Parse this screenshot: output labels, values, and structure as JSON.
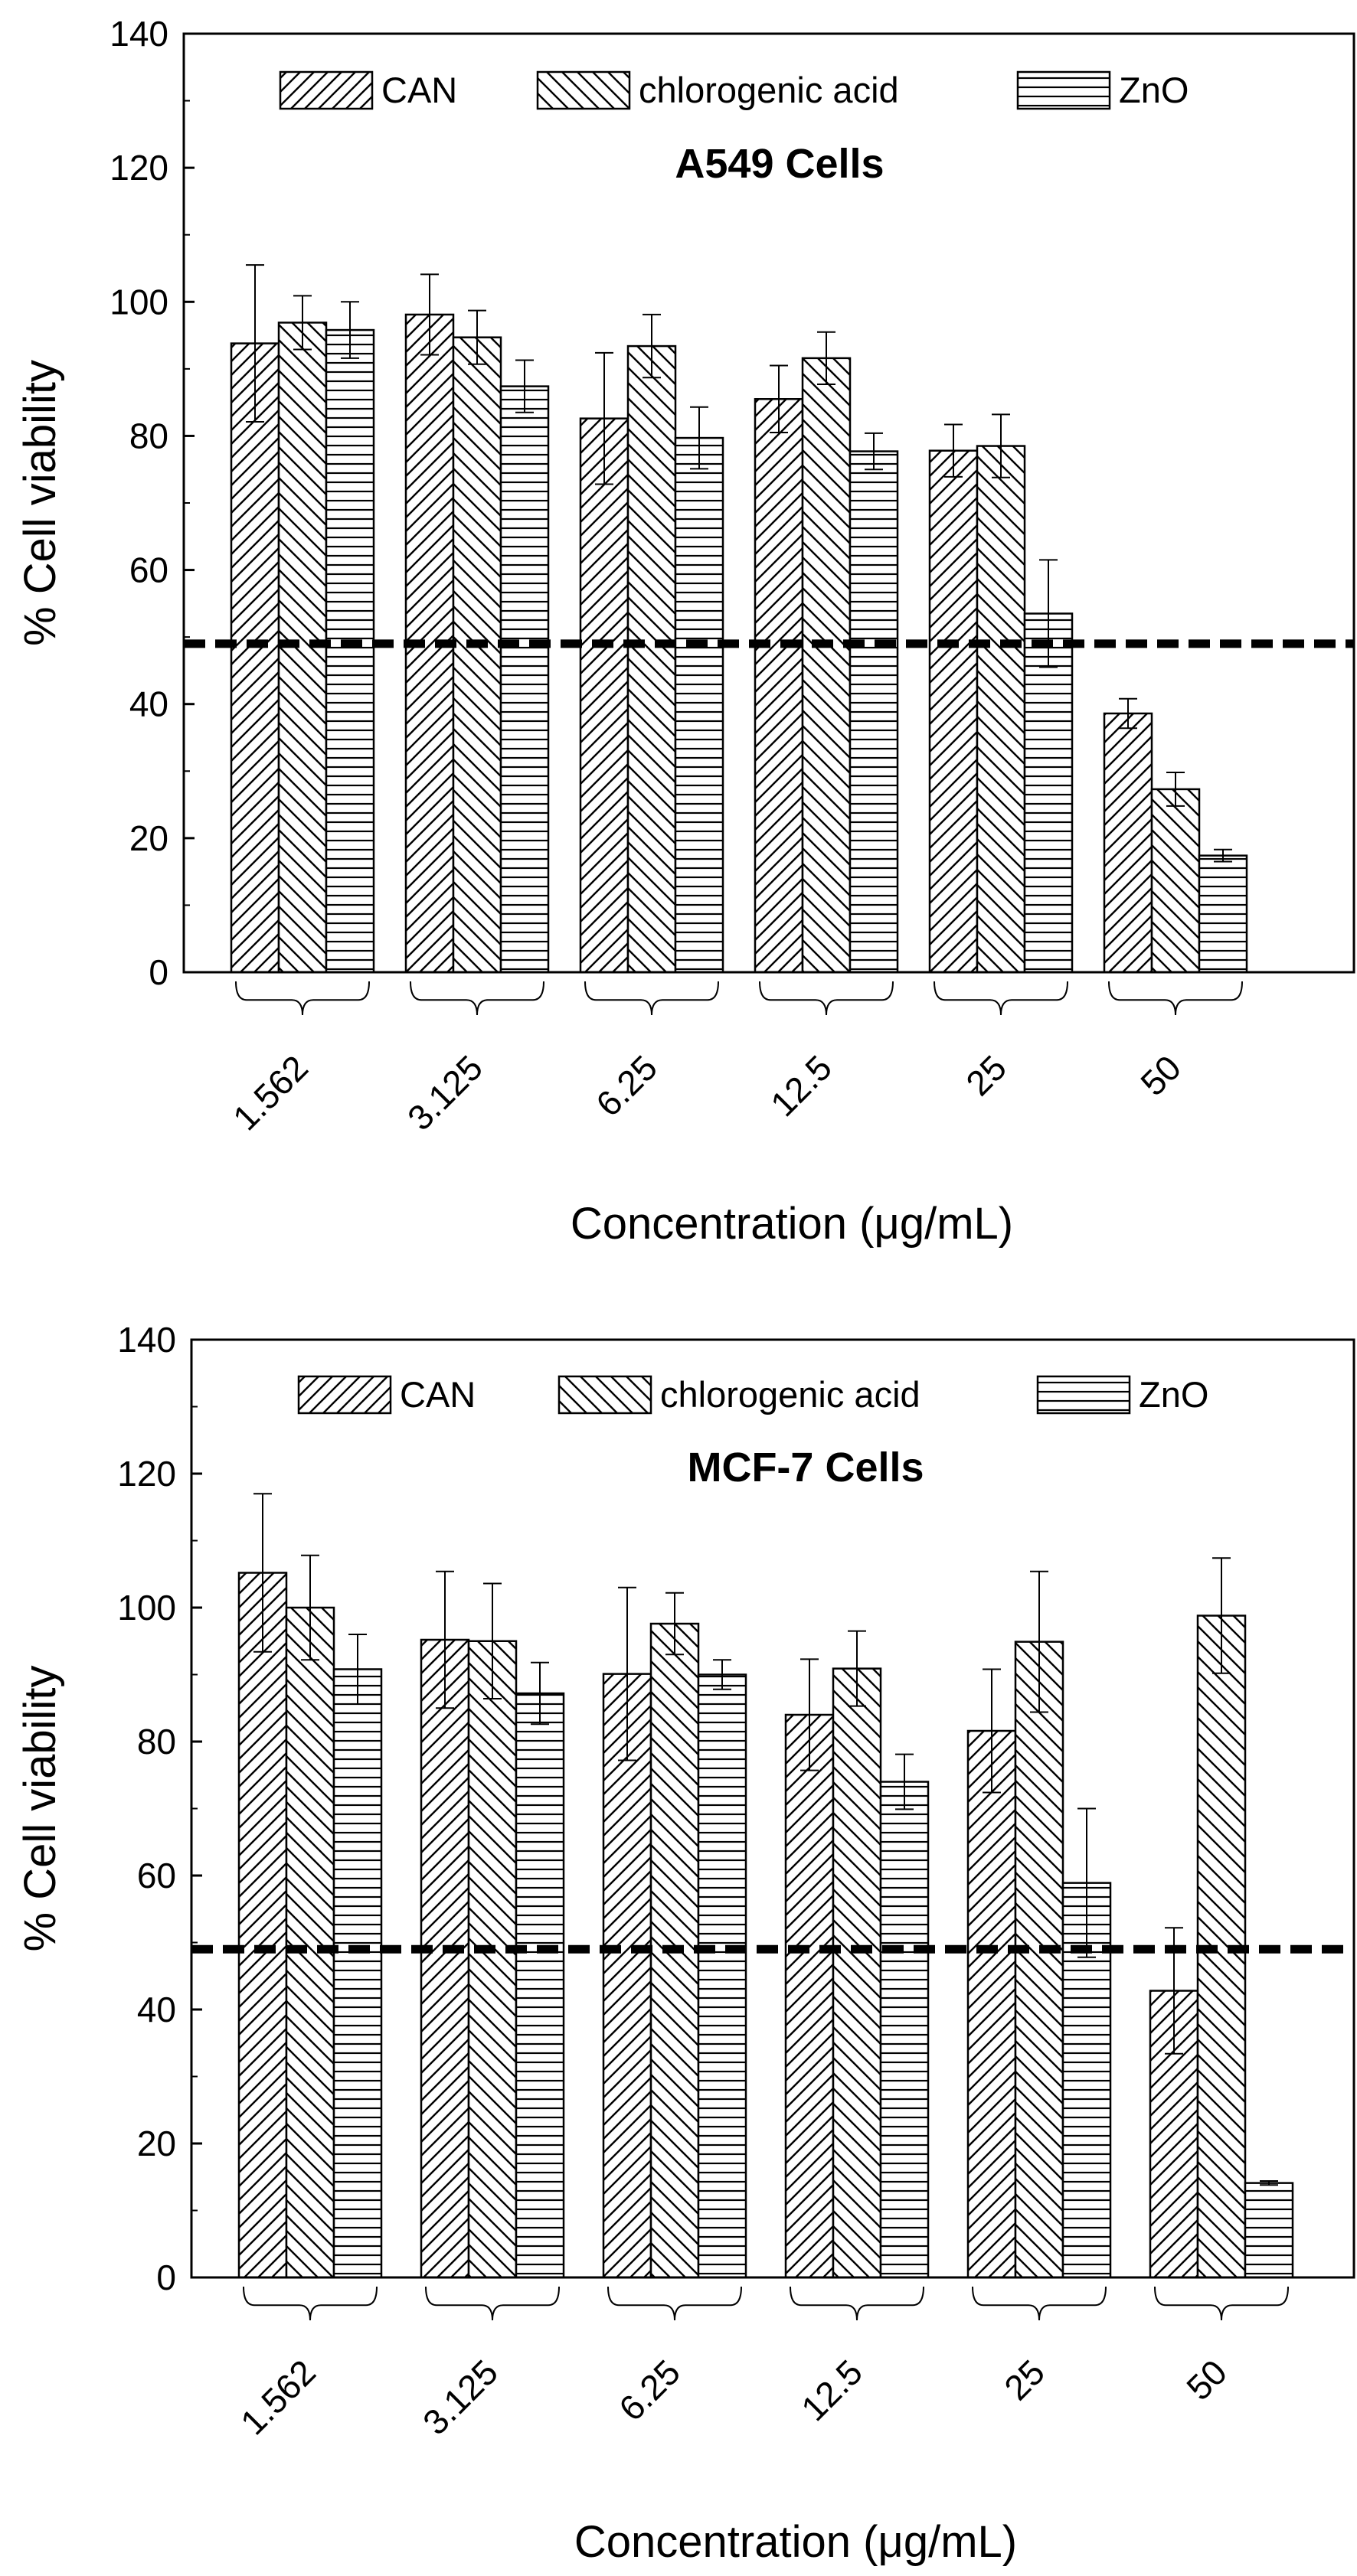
{
  "chart_data": [
    {
      "type": "bar",
      "title": "A549 Cells",
      "xlabel": "Concentration (μg/mL)",
      "ylabel": "% Cell viability",
      "ylim": [
        0,
        140
      ],
      "yticks": [
        "0",
        "20",
        "40",
        "60",
        "80",
        "100",
        "120",
        "140"
      ],
      "categories": [
        "1.562",
        "3.125",
        "6.25",
        "12.5",
        "25",
        "50"
      ],
      "threshold": 49,
      "legend_position": "top",
      "series": [
        {
          "name": "CAN",
          "pattern": "diag-fwd",
          "values": [
            93.8,
            98.1,
            82.6,
            85.5,
            77.8,
            38.6
          ],
          "errors": [
            11.7,
            6.0,
            9.8,
            5.0,
            3.9,
            2.2
          ]
        },
        {
          "name": "chlorogenic acid",
          "pattern": "diag-back",
          "values": [
            96.9,
            94.7,
            93.4,
            91.6,
            78.5,
            27.3
          ],
          "errors": [
            4.0,
            4.0,
            4.7,
            3.9,
            4.7,
            2.5
          ]
        },
        {
          "name": "ZnO",
          "pattern": "horizontal",
          "values": [
            95.8,
            87.4,
            79.7,
            77.7,
            53.5,
            17.4
          ],
          "errors": [
            4.2,
            3.9,
            4.6,
            2.7,
            8.0,
            0.9
          ]
        }
      ]
    },
    {
      "type": "bar",
      "title": "MCF-7 Cells",
      "xlabel": "Concentration (μg/mL)",
      "ylabel": "% Cell viability",
      "ylim": [
        0,
        140
      ],
      "yticks": [
        "0",
        "20",
        "40",
        "60",
        "80",
        "100",
        "120",
        "140"
      ],
      "categories": [
        "1.562",
        "3.125",
        "6.25",
        "12.5",
        "25",
        "50"
      ],
      "threshold": 49,
      "legend_position": "top",
      "series": [
        {
          "name": "CAN",
          "pattern": "diag-fwd",
          "values": [
            105.2,
            95.2,
            90.1,
            84.0,
            81.6,
            42.8
          ],
          "errors": [
            11.8,
            10.2,
            12.9,
            8.3,
            9.2,
            9.4
          ]
        },
        {
          "name": "chlorogenic acid",
          "pattern": "diag-back",
          "values": [
            100.0,
            95.0,
            97.6,
            90.9,
            94.9,
            98.8
          ],
          "errors": [
            7.8,
            8.6,
            4.6,
            5.6,
            10.5,
            8.6
          ]
        },
        {
          "name": "ZnO",
          "pattern": "horizontal",
          "values": [
            90.8,
            87.2,
            90.0,
            74.0,
            58.9,
            14.1
          ],
          "errors": [
            5.2,
            4.6,
            2.2,
            4.1,
            11.1,
            0.3
          ]
        }
      ]
    }
  ]
}
